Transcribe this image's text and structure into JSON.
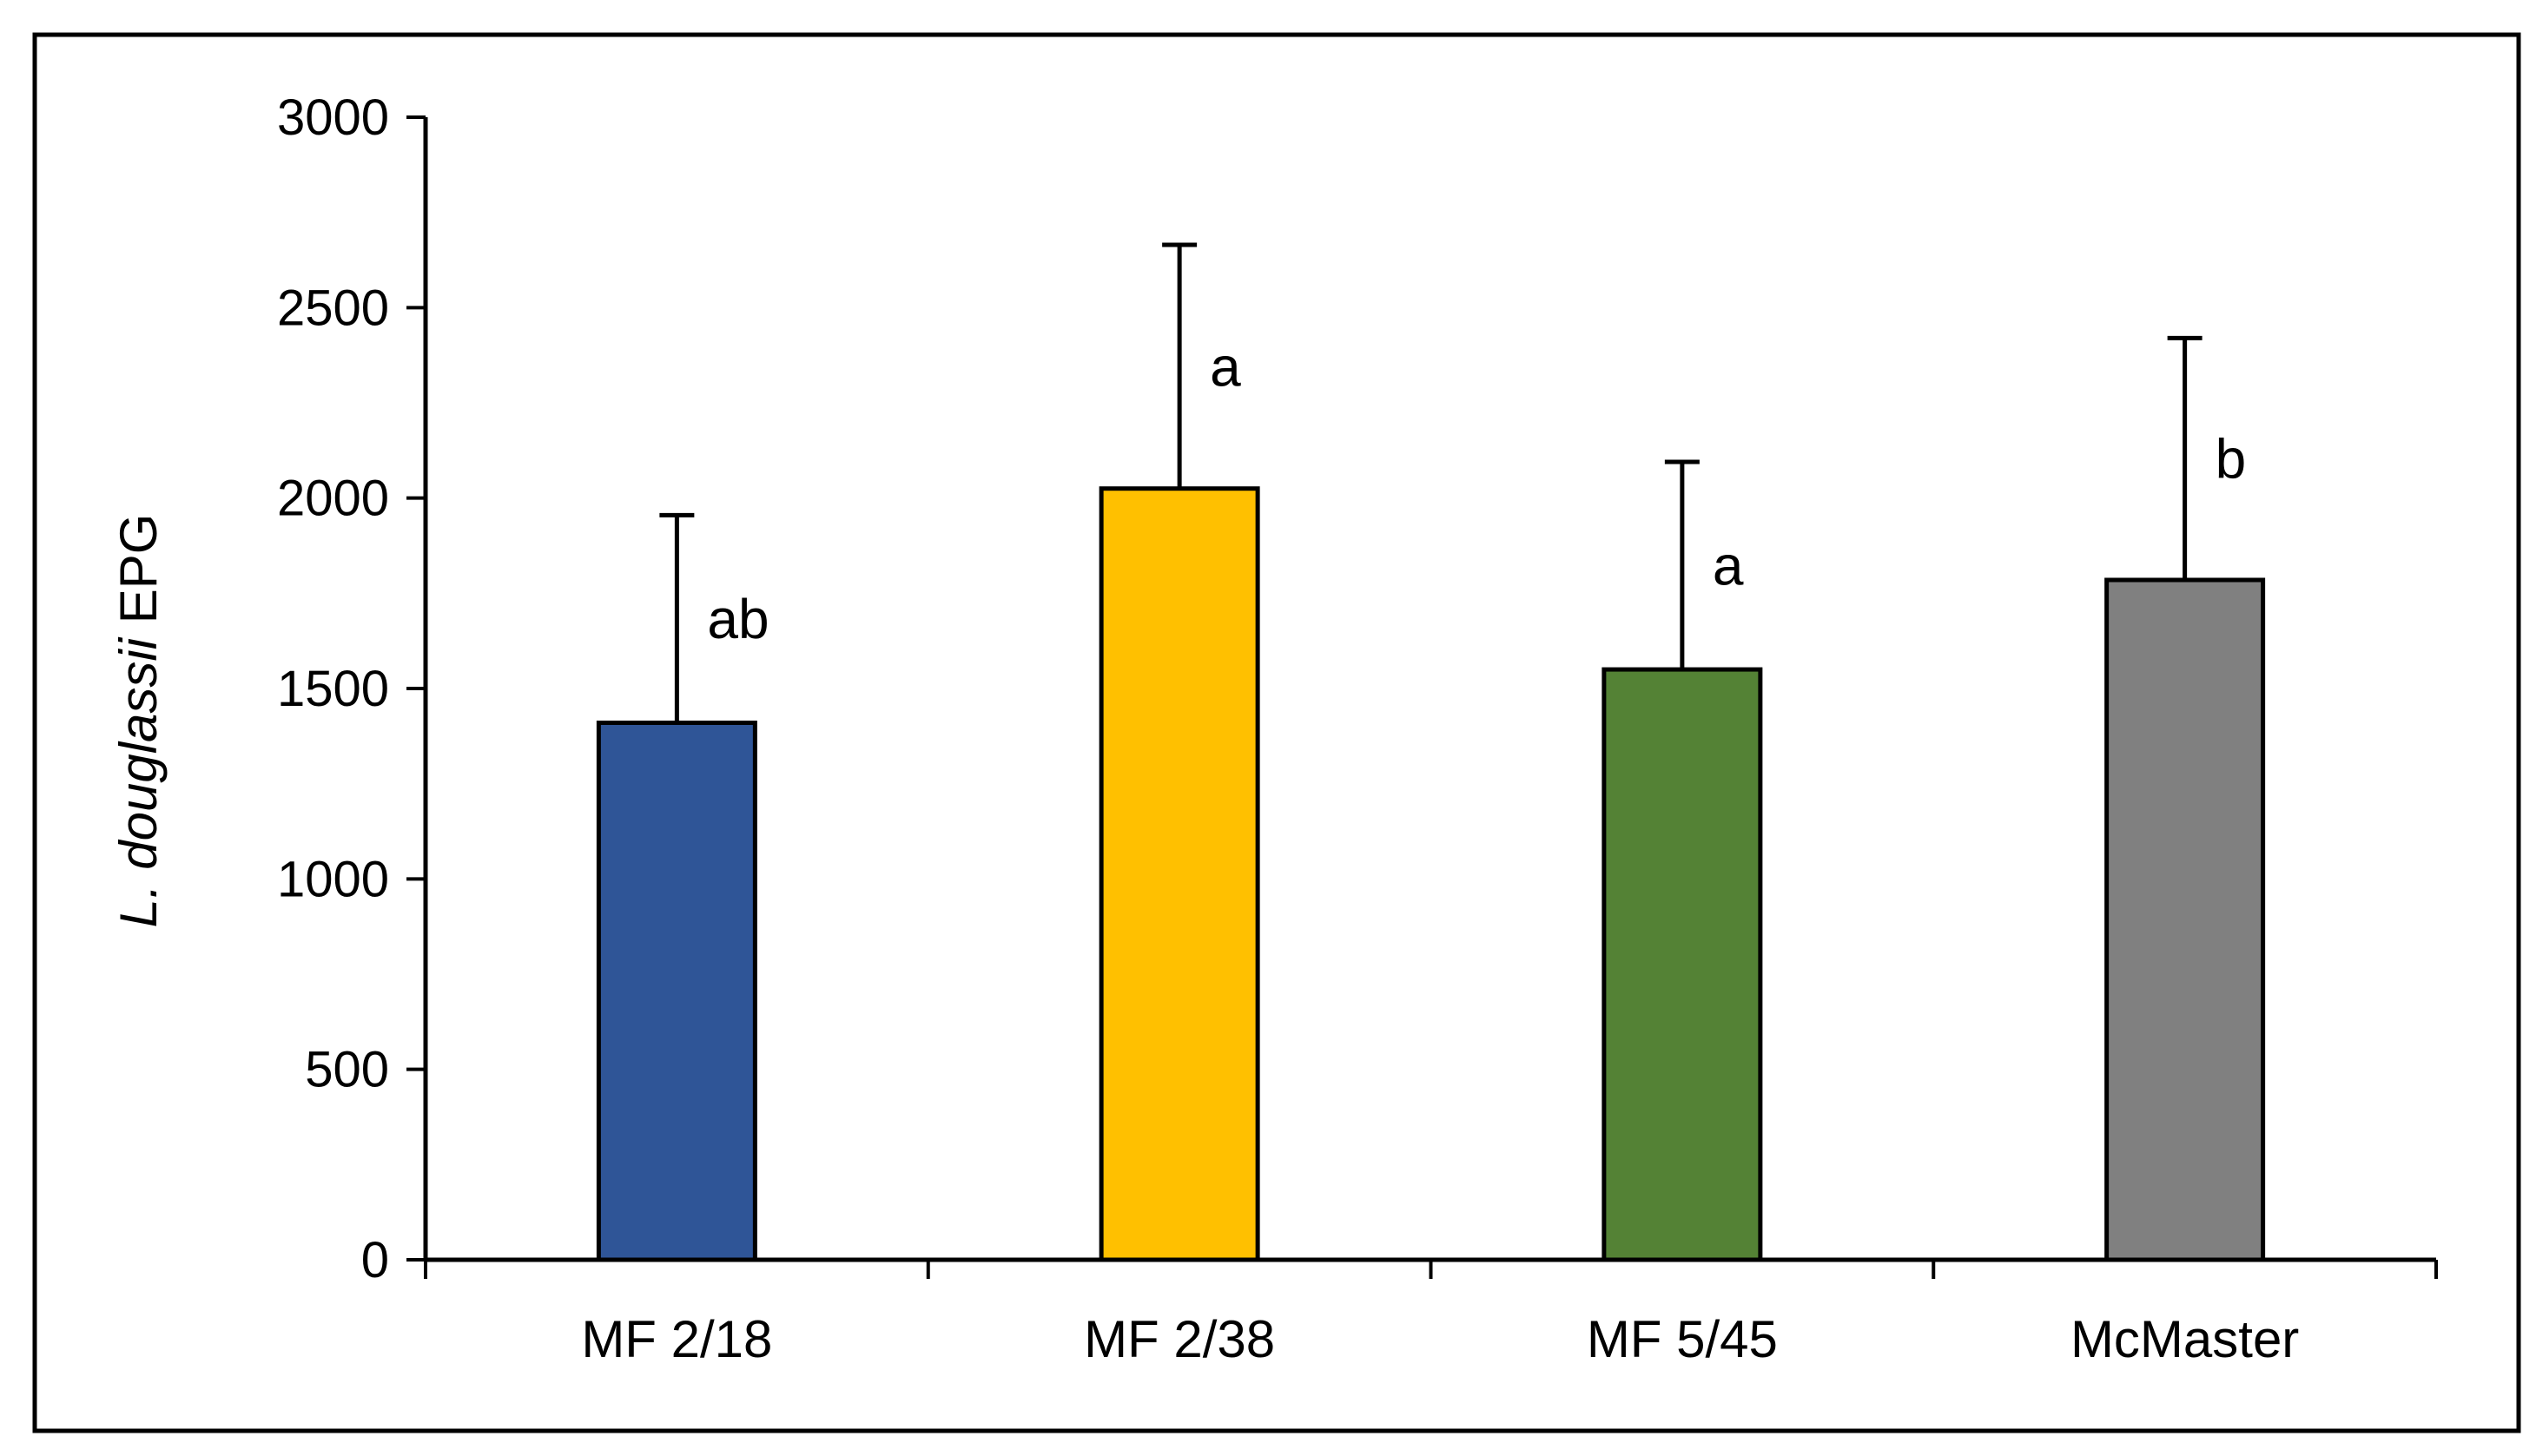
{
  "chart_data": {
    "type": "bar",
    "title": "",
    "xlabel": "",
    "ylabel_italic": "L. douglassii",
    "ylabel_rest": " EPG",
    "ylim": [
      0,
      3000
    ],
    "yticks": [
      0,
      500,
      1000,
      1500,
      2000,
      2500,
      3000
    ],
    "grid": false,
    "legend": "none",
    "categories": [
      "MF 2/18",
      "MF 2/38",
      "MF 5/45",
      "McMaster"
    ],
    "values": [
      1410,
      2025,
      1550,
      1785
    ],
    "error_upper": [
      1955,
      2665,
      2095,
      2420
    ],
    "significance": [
      "ab",
      "a",
      "a",
      "b"
    ],
    "colors": [
      "#2f5597",
      "#ffc000",
      "#548235",
      "#808080"
    ]
  }
}
